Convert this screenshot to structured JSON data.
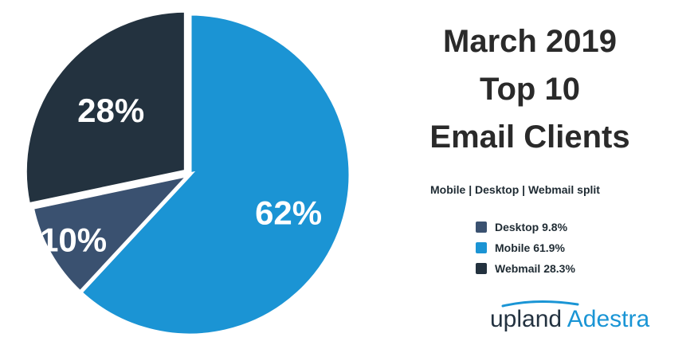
{
  "title_lines": [
    "March 2019",
    "Top 10",
    "Email Clients"
  ],
  "subtitle": "Mobile | Desktop | Webmail split",
  "legend": [
    {
      "label": "Desktop 9.8%",
      "color": "#3a5170"
    },
    {
      "label": "Mobile 61.9%",
      "color": "#1b94d4"
    },
    {
      "label": "Webmail 28.3%",
      "color": "#23323f"
    }
  ],
  "logo": {
    "upland": "upland",
    "brand": "Adestra",
    "arc_color": "#1a95d5"
  },
  "chart_data": {
    "type": "pie",
    "slices": [
      {
        "name": "Mobile",
        "value": 61.9,
        "label": "62%",
        "color": "#1b94d4"
      },
      {
        "name": "Desktop",
        "value": 9.8,
        "label": "10%",
        "color": "#3a5170"
      },
      {
        "name": "Webmail",
        "value": 28.3,
        "label": "28%",
        "color": "#23323f"
      }
    ],
    "start_angle": "12 o'clock, clockwise",
    "exploded": "Webmail"
  }
}
